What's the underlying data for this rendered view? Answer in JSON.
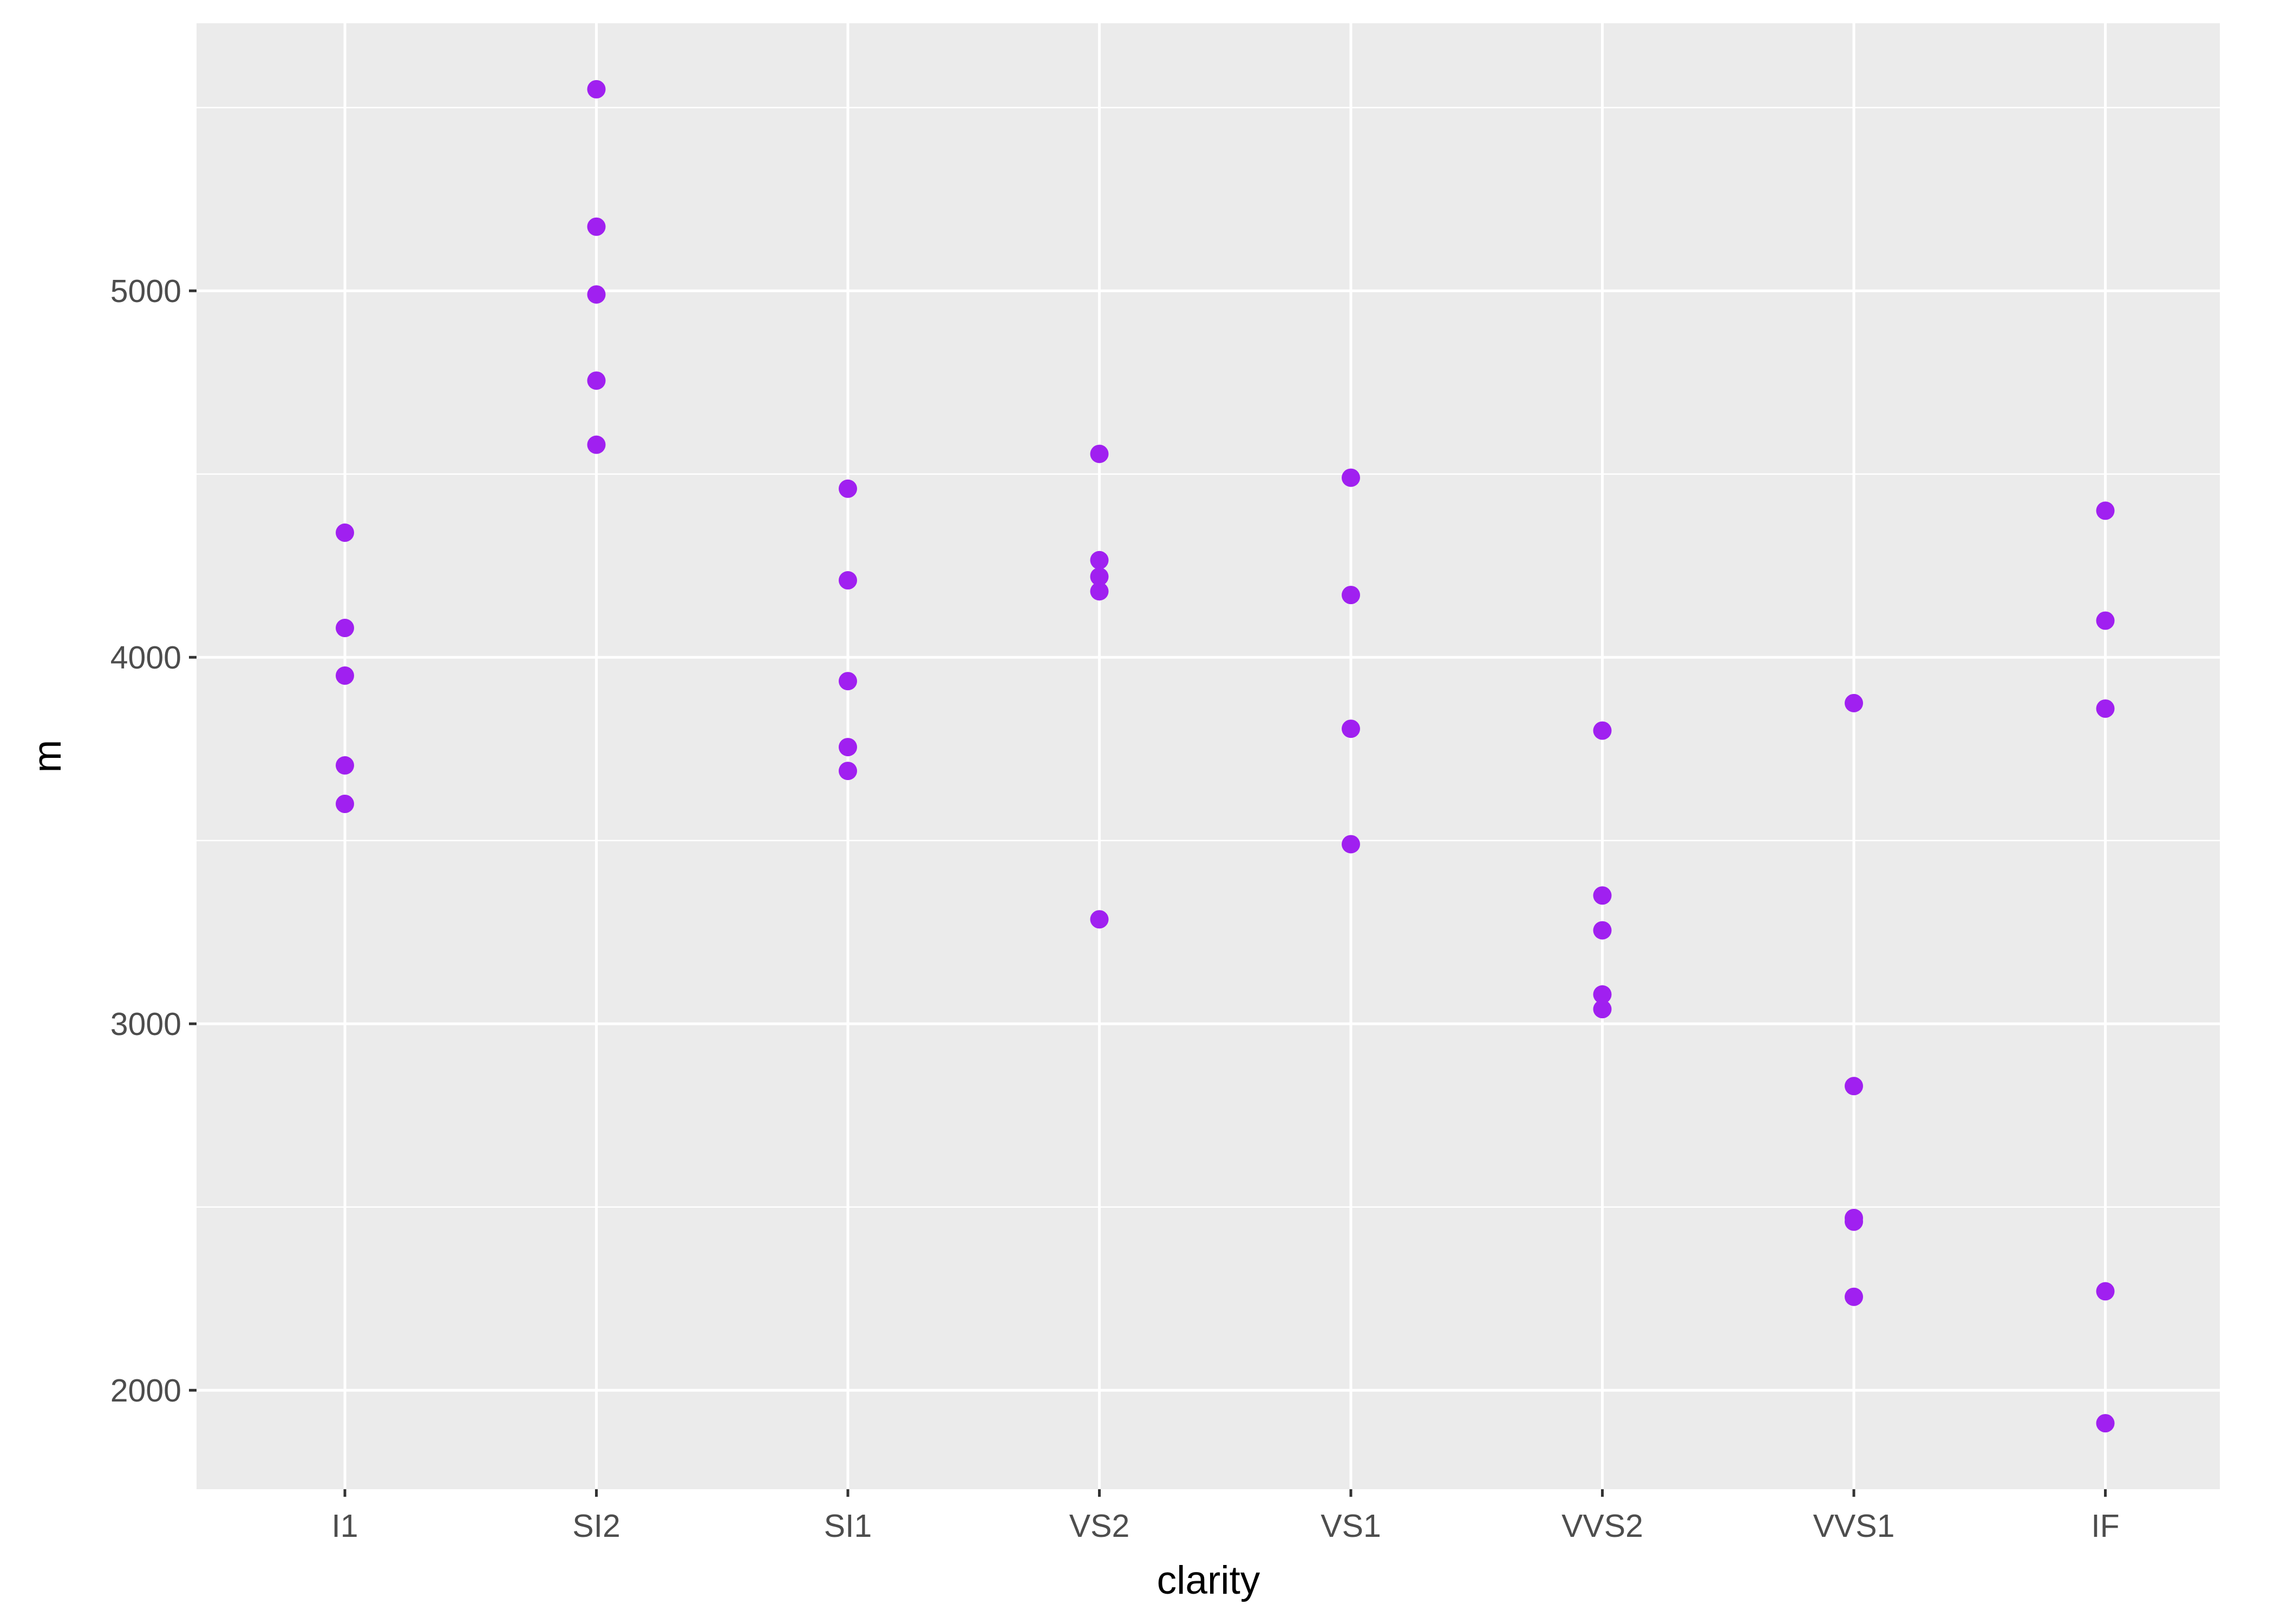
{
  "chart_data": {
    "type": "scatter",
    "xlabel": "clarity",
    "ylabel": "m",
    "categories": [
      "I1",
      "SI2",
      "SI1",
      "VS2",
      "VS1",
      "VVS2",
      "VVS1",
      "IF"
    ],
    "yticks": [
      2000,
      3000,
      4000,
      5000
    ],
    "ytick_labels": [
      "2000",
      "3000",
      "4000",
      "5000"
    ],
    "ylim": [
      1730,
      5730
    ],
    "grid": true,
    "series": [
      {
        "points": [
          {
            "x": "I1",
            "y": 4340
          },
          {
            "x": "I1",
            "y": 4080
          },
          {
            "x": "I1",
            "y": 3950
          },
          {
            "x": "I1",
            "y": 3705
          },
          {
            "x": "I1",
            "y": 3600
          },
          {
            "x": "SI2",
            "y": 5550
          },
          {
            "x": "SI2",
            "y": 5175
          },
          {
            "x": "SI2",
            "y": 4990
          },
          {
            "x": "SI2",
            "y": 4755
          },
          {
            "x": "SI2",
            "y": 4580
          },
          {
            "x": "SI1",
            "y": 4460
          },
          {
            "x": "SI1",
            "y": 4210
          },
          {
            "x": "SI1",
            "y": 3935
          },
          {
            "x": "SI1",
            "y": 3755
          },
          {
            "x": "SI1",
            "y": 3690
          },
          {
            "x": "VS2",
            "y": 4555
          },
          {
            "x": "VS2",
            "y": 4265
          },
          {
            "x": "VS2",
            "y": 4220
          },
          {
            "x": "VS2",
            "y": 4180
          },
          {
            "x": "VS2",
            "y": 3285
          },
          {
            "x": "VS1",
            "y": 4490
          },
          {
            "x": "VS1",
            "y": 4170
          },
          {
            "x": "VS1",
            "y": 3805
          },
          {
            "x": "VS1",
            "y": 3490
          },
          {
            "x": "VVS2",
            "y": 3800
          },
          {
            "x": "VVS2",
            "y": 3350
          },
          {
            "x": "VVS2",
            "y": 3255
          },
          {
            "x": "VVS2",
            "y": 3080
          },
          {
            "x": "VVS2",
            "y": 3040
          },
          {
            "x": "VVS1",
            "y": 3875
          },
          {
            "x": "VVS1",
            "y": 2830
          },
          {
            "x": "VVS1",
            "y": 2470
          },
          {
            "x": "VVS1",
            "y": 2460
          },
          {
            "x": "VVS1",
            "y": 2255
          },
          {
            "x": "IF",
            "y": 4400
          },
          {
            "x": "IF",
            "y": 4100
          },
          {
            "x": "IF",
            "y": 3860
          },
          {
            "x": "IF",
            "y": 2270
          },
          {
            "x": "IF",
            "y": 1910
          }
        ]
      }
    ]
  },
  "colors": {
    "panel_background": "#ebebeb",
    "grid_major": "#ffffff",
    "point": "#a020f0",
    "tick_text": "#4d4d4d",
    "title_text": "#000000"
  }
}
